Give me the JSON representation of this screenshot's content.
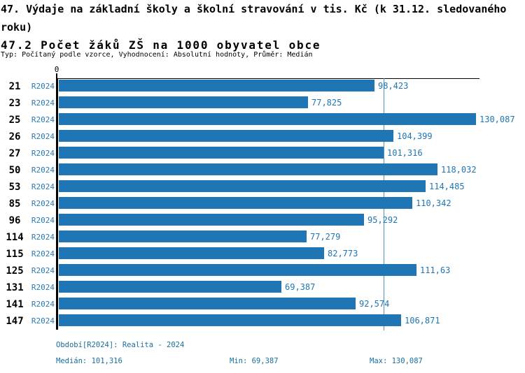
{
  "header": {
    "title_line1": "47. Výdaje na základní školy a školní stravování v tis. Kč (k 31.12. sledovaného roku)",
    "title_line2": "47.2 Počet žáků ZŠ na 1000 obyvatel obce",
    "meta": "Typ: Počítaný podle vzorce, Vyhodnocení: Absolutní hodnoty, Průměr: Medián"
  },
  "chart_data": {
    "type": "bar",
    "orientation": "horizontal",
    "zero_label": "0",
    "series_label": "R2024",
    "categories": [
      "21",
      "23",
      "25",
      "26",
      "27",
      "50",
      "53",
      "85",
      "96",
      "114",
      "115",
      "125",
      "131",
      "141",
      "147"
    ],
    "values": [
      98.423,
      77.825,
      130.087,
      104.399,
      101.316,
      118.032,
      114.485,
      110.342,
      95.292,
      77.279,
      82.773,
      111.63,
      69.387,
      92.574,
      106.871
    ],
    "value_labels": [
      "98,423",
      "77,825",
      "130,087",
      "104,399",
      "101,316",
      "118,032",
      "114,485",
      "110,342",
      "95,292",
      "77,279",
      "82,773",
      "111,63",
      "69,387",
      "92,574",
      "106,871"
    ],
    "median": 101.316,
    "min": 69.387,
    "max": 130.087,
    "xlim": [
      0,
      131.3
    ],
    "grid": false,
    "legend_position": "none",
    "colors": {
      "bar": "#2076b4",
      "median_line": "#4e96c2",
      "value_text": "#2076b4",
      "series_text": "#2a7ab5",
      "axis": "#000000",
      "footer_text": "#1a6f9c"
    }
  },
  "footer": {
    "period": "Období[R2024]: Realita - 2024",
    "median": "Medián: 101,316",
    "min": "Min: 69,387",
    "max": "Max: 130,087"
  }
}
